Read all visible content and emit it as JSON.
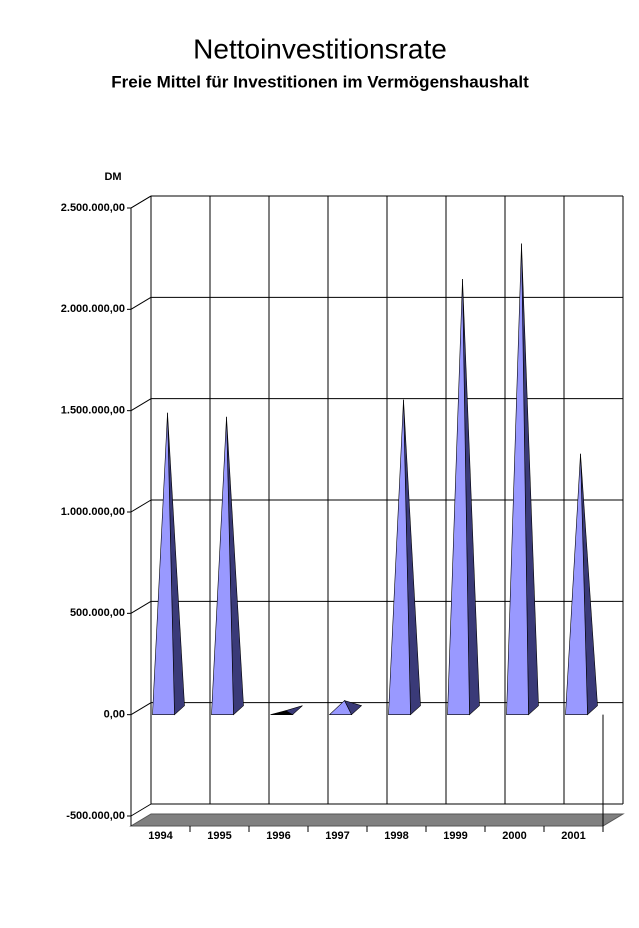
{
  "chart_data": {
    "type": "pyramid3d",
    "title": "Nettoinvestitionsrate",
    "subtitle": "Freie Mittel für Investitionen im Vermögenshaushalt",
    "y_label": "DM",
    "categories": [
      "1994",
      "1995",
      "1996",
      "1997",
      "1998",
      "1999",
      "2000",
      "2001"
    ],
    "values": [
      1460000,
      1440000,
      -10000,
      40000,
      1525000,
      2120000,
      2295000,
      1258000
    ],
    "color": "#9999ff",
    "ylim": [
      -500000,
      2500000
    ],
    "yticks": [
      {
        "value": -500000,
        "label": "-500.000,00"
      },
      {
        "value": 0,
        "label": "0,00"
      },
      {
        "value": 500000,
        "label": "500.000,00"
      },
      {
        "value": 1000000,
        "label": "1.000.000,00"
      },
      {
        "value": 1500000,
        "label": "1.500.000,00"
      },
      {
        "value": 2000000,
        "label": "2.000.000,00"
      },
      {
        "value": 2500000,
        "label": "2.500.000,00"
      }
    ],
    "grid": true
  }
}
